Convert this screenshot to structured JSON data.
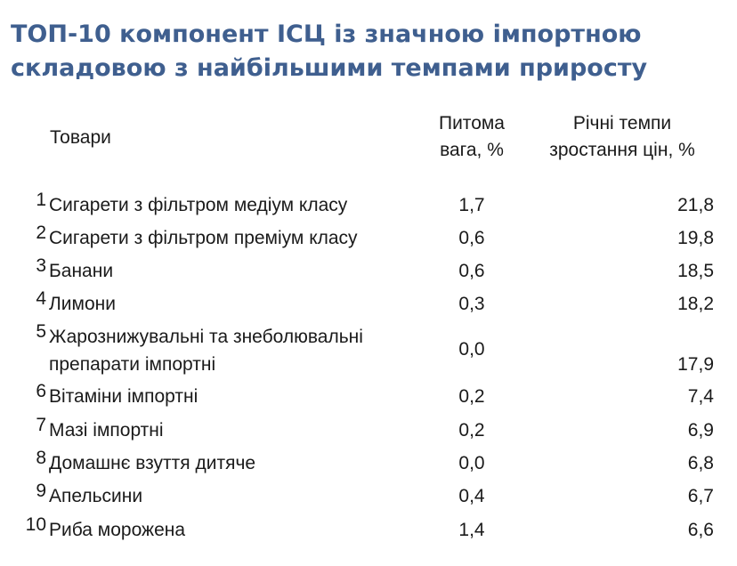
{
  "title": "ТОП-10 компонент ІСЦ із значною імпортною складовою з найбільшими темпами приросту",
  "headers": {
    "goods": "Товари",
    "weight_line1": "Питома",
    "weight_line2": "вага, %",
    "growth_line1": "Річні темпи",
    "growth_line2": "зростання цін, %"
  },
  "rows": [
    {
      "num": "1",
      "name": "Сигарети з фільтром медіум класу",
      "weight": "1,7",
      "growth": "21,8"
    },
    {
      "num": "2",
      "name": "Сигарети з фільтром преміум класу",
      "weight": "0,6",
      "growth": "19,8"
    },
    {
      "num": "3",
      "name": "Банани",
      "weight": "0,6",
      "growth": "18,5"
    },
    {
      "num": "4",
      "name": "Лимони",
      "weight": "0,3",
      "growth": "18,2"
    },
    {
      "num": "5",
      "name_line1": "Жарознижувальні та знеболювальні",
      "name_line2": "препарати імпортні",
      "weight": "0,0",
      "growth": "17,9"
    },
    {
      "num": "6",
      "name": "Вітаміни імпортні",
      "weight": "0,2",
      "growth": "7,4"
    },
    {
      "num": "7",
      "name": "Мазі імпортні",
      "weight": "0,2",
      "growth": "6,9"
    },
    {
      "num": "8",
      "name": "Домашнє взуття дитяче",
      "weight": "0,0",
      "growth": "6,8"
    },
    {
      "num": "9",
      "name": "Апельсини",
      "weight": "0,4",
      "growth": "6,7"
    },
    {
      "num": "10",
      "name": "Риба морожена",
      "weight": "1,4",
      "growth": "6,6"
    }
  ]
}
